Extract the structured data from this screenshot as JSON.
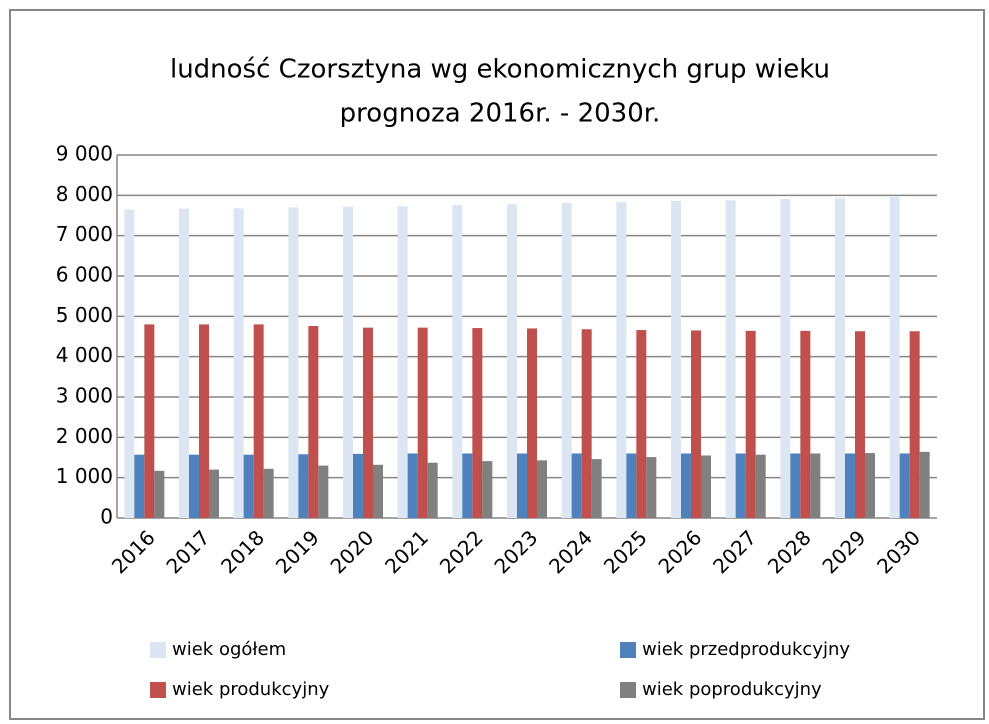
{
  "chart_data": {
    "type": "bar",
    "title": [
      "ludność Czorsztyna wg ekonomicznych grup wieku",
      "prognoza  2016r. - 2030r."
    ],
    "categories": [
      "2016",
      "2017",
      "2018",
      "2019",
      "2020",
      "2021",
      "2022",
      "2023",
      "2024",
      "2025",
      "2026",
      "2027",
      "2028",
      "2029",
      "2030"
    ],
    "series": [
      {
        "name": "wiek ogółem",
        "color": "#dce6f2",
        "values": [
          7650,
          7670,
          7680,
          7700,
          7720,
          7730,
          7760,
          7780,
          7810,
          7830,
          7860,
          7880,
          7910,
          7930,
          7960
        ]
      },
      {
        "name": "wiek przedprodukcyjny",
        "color": "#4f81bd",
        "values": [
          1570,
          1570,
          1570,
          1580,
          1590,
          1600,
          1600,
          1600,
          1600,
          1600,
          1600,
          1600,
          1600,
          1600,
          1600
        ]
      },
      {
        "name": "wiek produkcyjny",
        "color": "#c0504d",
        "values": [
          4800,
          4800,
          4800,
          4760,
          4720,
          4720,
          4710,
          4700,
          4680,
          4660,
          4650,
          4640,
          4640,
          4630,
          4630
        ]
      },
      {
        "name": "wiek poprodukcyjny",
        "color": "#808080",
        "values": [
          1170,
          1200,
          1220,
          1300,
          1320,
          1370,
          1410,
          1430,
          1460,
          1510,
          1550,
          1570,
          1600,
          1610,
          1640
        ]
      }
    ],
    "ylim": [
      0,
      9000
    ],
    "yticks": [
      0,
      {
        "value": 1000,
        "label": "1 000"
      },
      {
        "value": 2000,
        "label": "2 000"
      },
      {
        "value": 3000,
        "label": "3 000"
      },
      {
        "value": 4000,
        "label": "4 000"
      },
      {
        "value": 5000,
        "label": "5 000"
      },
      {
        "value": 6000,
        "label": "6 000"
      },
      {
        "value": 7000,
        "label": "7 000"
      },
      {
        "value": 8000,
        "label": "8 000"
      },
      {
        "value": 9000,
        "label": "9 000"
      }
    ],
    "grid": true,
    "legend": "bottom"
  }
}
